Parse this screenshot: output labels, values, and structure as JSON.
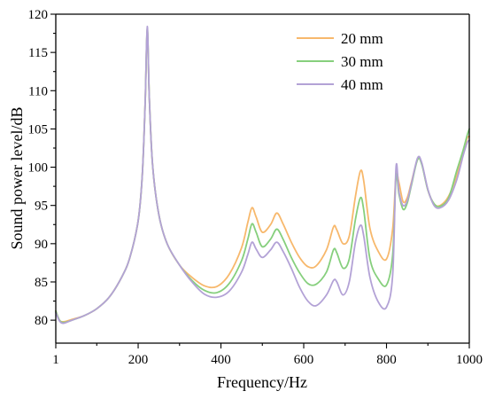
{
  "chart_data": {
    "type": "line",
    "title": "",
    "xlabel": "Frequency/Hz",
    "ylabel": "Sound power level/dB",
    "xlim": [
      1,
      1000
    ],
    "ylim": [
      77,
      120
    ],
    "x_ticks": [
      1,
      200,
      400,
      600,
      800,
      1000
    ],
    "x_tick_labels": [
      "1",
      "200",
      "400",
      "600",
      "800",
      "1000"
    ],
    "y_ticks": [
      80,
      85,
      90,
      95,
      100,
      105,
      110,
      115,
      120
    ],
    "y_tick_labels": [
      "80",
      "85",
      "90",
      "95",
      "100",
      "105",
      "110",
      "115",
      "120"
    ],
    "grid": false,
    "legend_position": "top-right",
    "series": [
      {
        "name": "20 mm",
        "color": "#f7b86c",
        "points": [
          [
            1,
            81.2
          ],
          [
            10,
            80.0
          ],
          [
            20,
            79.8
          ],
          [
            40,
            80.1
          ],
          [
            70,
            80.6
          ],
          [
            100,
            81.5
          ],
          [
            130,
            83.0
          ],
          [
            160,
            85.6
          ],
          [
            180,
            88.2
          ],
          [
            200,
            93.0
          ],
          [
            210,
            99.0
          ],
          [
            217,
            108.5
          ],
          [
            222,
            118.0
          ],
          [
            227,
            109.0
          ],
          [
            235,
            100.2
          ],
          [
            250,
            93.8
          ],
          [
            270,
            90.0
          ],
          [
            300,
            87.2
          ],
          [
            330,
            85.6
          ],
          [
            360,
            84.5
          ],
          [
            390,
            84.4
          ],
          [
            420,
            86.0
          ],
          [
            450,
            89.5
          ],
          [
            465,
            92.8
          ],
          [
            475,
            94.7
          ],
          [
            485,
            93.5
          ],
          [
            500,
            91.5
          ],
          [
            520,
            92.5
          ],
          [
            535,
            94.0
          ],
          [
            550,
            92.6
          ],
          [
            570,
            90.2
          ],
          [
            590,
            88.2
          ],
          [
            610,
            87.0
          ],
          [
            630,
            87.1
          ],
          [
            655,
            89.2
          ],
          [
            672,
            92.2
          ],
          [
            680,
            91.8
          ],
          [
            695,
            90.0
          ],
          [
            710,
            91.0
          ],
          [
            725,
            96.2
          ],
          [
            737,
            99.5
          ],
          [
            745,
            98.2
          ],
          [
            760,
            92.0
          ],
          [
            780,
            89.0
          ],
          [
            800,
            88.0
          ],
          [
            815,
            92.0
          ],
          [
            823,
            99.0
          ],
          [
            830,
            98.0
          ],
          [
            840,
            95.5
          ],
          [
            850,
            96.0
          ],
          [
            860,
            98.0
          ],
          [
            875,
            101.0
          ],
          [
            885,
            100.5
          ],
          [
            900,
            97.0
          ],
          [
            915,
            95.2
          ],
          [
            930,
            95.0
          ],
          [
            950,
            96.2
          ],
          [
            970,
            99.0
          ],
          [
            985,
            102.0
          ],
          [
            995,
            103.8
          ],
          [
            1000,
            104.0
          ]
        ]
      },
      {
        "name": "30 mm",
        "color": "#86cf7d",
        "points": [
          [
            1,
            81.2
          ],
          [
            10,
            80.0
          ],
          [
            20,
            79.7
          ],
          [
            40,
            80.0
          ],
          [
            70,
            80.6
          ],
          [
            100,
            81.5
          ],
          [
            130,
            83.0
          ],
          [
            160,
            85.6
          ],
          [
            180,
            88.2
          ],
          [
            200,
            93.0
          ],
          [
            210,
            99.0
          ],
          [
            217,
            108.5
          ],
          [
            222,
            118.2
          ],
          [
            227,
            109.0
          ],
          [
            235,
            100.2
          ],
          [
            250,
            93.8
          ],
          [
            270,
            90.0
          ],
          [
            300,
            87.2
          ],
          [
            330,
            85.2
          ],
          [
            360,
            83.9
          ],
          [
            390,
            83.6
          ],
          [
            420,
            84.8
          ],
          [
            450,
            87.8
          ],
          [
            465,
            90.6
          ],
          [
            475,
            92.6
          ],
          [
            485,
            91.5
          ],
          [
            500,
            89.6
          ],
          [
            520,
            90.6
          ],
          [
            535,
            91.9
          ],
          [
            550,
            90.6
          ],
          [
            570,
            88.2
          ],
          [
            590,
            86.2
          ],
          [
            610,
            84.8
          ],
          [
            630,
            84.7
          ],
          [
            655,
            86.3
          ],
          [
            672,
            89.2
          ],
          [
            680,
            88.8
          ],
          [
            695,
            86.8
          ],
          [
            710,
            88.0
          ],
          [
            725,
            93.2
          ],
          [
            737,
            96.0
          ],
          [
            745,
            94.4
          ],
          [
            760,
            88.0
          ],
          [
            780,
            85.4
          ],
          [
            800,
            84.6
          ],
          [
            815,
            88.6
          ],
          [
            823,
            98.8
          ],
          [
            830,
            96.5
          ],
          [
            840,
            94.5
          ],
          [
            850,
            95.3
          ],
          [
            860,
            97.6
          ],
          [
            875,
            101.0
          ],
          [
            885,
            100.4
          ],
          [
            900,
            97.0
          ],
          [
            915,
            95.2
          ],
          [
            930,
            94.9
          ],
          [
            950,
            96.0
          ],
          [
            970,
            99.6
          ],
          [
            985,
            102.2
          ],
          [
            995,
            104.2
          ],
          [
            1000,
            105.0
          ]
        ]
      },
      {
        "name": "40 mm",
        "color": "#b3a2d6",
        "points": [
          [
            1,
            81.0
          ],
          [
            10,
            79.9
          ],
          [
            20,
            79.6
          ],
          [
            40,
            80.0
          ],
          [
            70,
            80.6
          ],
          [
            100,
            81.5
          ],
          [
            130,
            83.0
          ],
          [
            160,
            85.6
          ],
          [
            180,
            88.2
          ],
          [
            200,
            93.0
          ],
          [
            210,
            99.0
          ],
          [
            217,
            108.5
          ],
          [
            222,
            118.4
          ],
          [
            227,
            109.0
          ],
          [
            235,
            100.2
          ],
          [
            250,
            93.8
          ],
          [
            270,
            90.0
          ],
          [
            300,
            87.2
          ],
          [
            330,
            85.0
          ],
          [
            360,
            83.4
          ],
          [
            390,
            83.0
          ],
          [
            420,
            83.8
          ],
          [
            450,
            86.3
          ],
          [
            465,
            88.6
          ],
          [
            475,
            90.2
          ],
          [
            485,
            89.3
          ],
          [
            500,
            88.2
          ],
          [
            520,
            89.2
          ],
          [
            535,
            90.2
          ],
          [
            550,
            89.0
          ],
          [
            570,
            86.8
          ],
          [
            590,
            84.3
          ],
          [
            610,
            82.5
          ],
          [
            630,
            81.9
          ],
          [
            655,
            83.3
          ],
          [
            672,
            85.2
          ],
          [
            680,
            85.0
          ],
          [
            695,
            83.3
          ],
          [
            710,
            85.0
          ],
          [
            725,
            90.2
          ],
          [
            737,
            92.4
          ],
          [
            745,
            91.0
          ],
          [
            760,
            85.6
          ],
          [
            780,
            82.4
          ],
          [
            800,
            81.7
          ],
          [
            815,
            86.0
          ],
          [
            823,
            100.0
          ],
          [
            830,
            96.8
          ],
          [
            840,
            95.0
          ],
          [
            850,
            95.6
          ],
          [
            860,
            97.8
          ],
          [
            875,
            101.2
          ],
          [
            885,
            100.6
          ],
          [
            900,
            97.1
          ],
          [
            915,
            95.0
          ],
          [
            930,
            94.7
          ],
          [
            950,
            95.7
          ],
          [
            970,
            98.4
          ],
          [
            985,
            101.5
          ],
          [
            995,
            103.2
          ],
          [
            1000,
            103.5
          ]
        ]
      }
    ]
  }
}
